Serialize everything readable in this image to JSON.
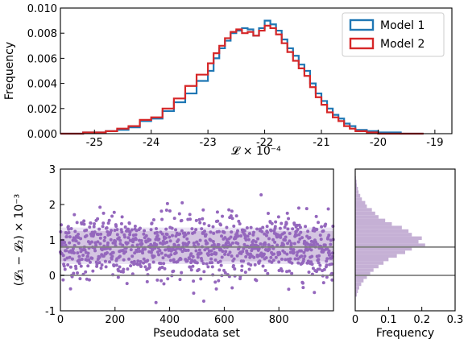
{
  "chart_data": [
    {
      "type": "histogram",
      "xlabel": "𝓛 × 10⁻⁴",
      "ylabel": "Frequency",
      "xlim": [
        -25.6,
        -18.7
      ],
      "ylim": [
        0,
        0.01
      ],
      "xticks": [
        -25,
        -24,
        -23,
        -22,
        -21,
        -20,
        -19
      ],
      "xtick_labels": [
        "-25",
        "-24",
        "-23",
        "-22",
        "-21",
        "-20",
        "-19"
      ],
      "yticks": [
        0,
        0.002,
        0.004,
        0.006,
        0.008,
        0.01
      ],
      "ytick_labels": [
        "0.000",
        "0.002",
        "0.004",
        "0.006",
        "0.008",
        "0.010"
      ],
      "legend_position": "top-right",
      "series": [
        {
          "name": "Model 1",
          "color": "#1f77b4",
          "bin_edges": [
            -25.6,
            -25.2,
            -24.8,
            -24.6,
            -24.4,
            -24.2,
            -24.0,
            -23.8,
            -23.6,
            -23.4,
            -23.2,
            -23.0,
            -22.9,
            -22.8,
            -22.7,
            -22.6,
            -22.5,
            -22.4,
            -22.3,
            -22.2,
            -22.1,
            -22.0,
            -21.9,
            -21.8,
            -21.7,
            -21.6,
            -21.5,
            -21.4,
            -21.3,
            -21.2,
            -21.1,
            -21.0,
            -20.9,
            -20.8,
            -20.7,
            -20.6,
            -20.5,
            -20.4,
            -20.2,
            -20.0,
            -19.6,
            -19.2
          ],
          "values": [
            0.0,
            0.0001,
            0.0002,
            0.0003,
            0.0005,
            0.001,
            0.0012,
            0.0018,
            0.0025,
            0.0032,
            0.0042,
            0.005,
            0.006,
            0.0068,
            0.0074,
            0.008,
            0.0082,
            0.0084,
            0.0083,
            0.0078,
            0.0084,
            0.009,
            0.0087,
            0.0082,
            0.0075,
            0.0068,
            0.0062,
            0.0055,
            0.005,
            0.004,
            0.0032,
            0.0026,
            0.002,
            0.0015,
            0.0012,
            0.0008,
            0.0006,
            0.0003,
            0.0002,
            0.0001,
            0.0
          ]
        },
        {
          "name": "Model 2",
          "color": "#d62728",
          "bin_edges": [
            -25.6,
            -25.2,
            -24.8,
            -24.6,
            -24.4,
            -24.2,
            -24.0,
            -23.8,
            -23.6,
            -23.4,
            -23.2,
            -23.0,
            -22.9,
            -22.8,
            -22.7,
            -22.6,
            -22.5,
            -22.4,
            -22.3,
            -22.2,
            -22.1,
            -22.0,
            -21.9,
            -21.8,
            -21.7,
            -21.6,
            -21.5,
            -21.4,
            -21.3,
            -21.2,
            -21.1,
            -21.0,
            -20.9,
            -20.8,
            -20.7,
            -20.6,
            -20.5,
            -20.4,
            -20.2,
            -20.0,
            -19.6,
            -19.2
          ],
          "values": [
            0.0,
            0.0001,
            0.0002,
            0.0004,
            0.0006,
            0.0011,
            0.0013,
            0.002,
            0.0028,
            0.0038,
            0.0047,
            0.0056,
            0.0064,
            0.007,
            0.0076,
            0.0081,
            0.0083,
            0.008,
            0.0081,
            0.0078,
            0.0082,
            0.0086,
            0.0084,
            0.0079,
            0.0072,
            0.0065,
            0.0058,
            0.0052,
            0.0046,
            0.0037,
            0.0029,
            0.0023,
            0.0017,
            0.0013,
            0.001,
            0.0006,
            0.0004,
            0.0002,
            0.0001,
            0.0,
            0.0
          ]
        }
      ]
    },
    {
      "type": "scatter",
      "xlabel": "Pseudodata set",
      "ylabel": "(𝓛₁ − 𝓛₂) × 10⁻³",
      "xlim": [
        0,
        1000
      ],
      "ylim": [
        -1,
        3
      ],
      "xticks": [
        0,
        200,
        400,
        600,
        800
      ],
      "xtick_labels": [
        "0",
        "200",
        "400",
        "600",
        "800"
      ],
      "yticks": [
        -1,
        0,
        1,
        2,
        3
      ],
      "ytick_labels": [
        "-1",
        "0",
        "1",
        "2",
        "3"
      ],
      "color": "#9467bd",
      "n_points": 1000,
      "mean": 0.8,
      "std": 0.45,
      "band_inner": [
        0.4,
        1.25
      ],
      "band_outer": [
        0.32,
        1.35
      ],
      "hlines": [
        0.0,
        0.8
      ]
    },
    {
      "type": "histogram-horizontal",
      "xlabel": "Frequency",
      "xlim": [
        0,
        0.3
      ],
      "ylim": [
        -1,
        3
      ],
      "xticks": [
        0,
        0.1,
        0.2,
        0.3
      ],
      "xtick_labels": [
        "0",
        "0.1",
        "0.2",
        "0.3"
      ],
      "color": "#c5b0d5",
      "bins": [
        -0.6,
        -0.5,
        -0.4,
        -0.3,
        -0.2,
        -0.1,
        0.0,
        0.1,
        0.2,
        0.3,
        0.4,
        0.5,
        0.6,
        0.7,
        0.8,
        0.9,
        1.0,
        1.1,
        1.2,
        1.3,
        1.4,
        1.5,
        1.6,
        1.7,
        1.8,
        1.9,
        2.0,
        2.1,
        2.2,
        2.3,
        2.4,
        2.5,
        2.6,
        2.7
      ],
      "values": [
        0.005,
        0.008,
        0.012,
        0.018,
        0.025,
        0.035,
        0.045,
        0.055,
        0.07,
        0.085,
        0.1,
        0.125,
        0.15,
        0.17,
        0.21,
        0.19,
        0.2,
        0.17,
        0.16,
        0.14,
        0.11,
        0.09,
        0.07,
        0.06,
        0.05,
        0.035,
        0.03,
        0.02,
        0.015,
        0.01,
        0.008,
        0.005,
        0.004,
        0.002
      ],
      "hlines": [
        0.0,
        0.8
      ]
    }
  ]
}
